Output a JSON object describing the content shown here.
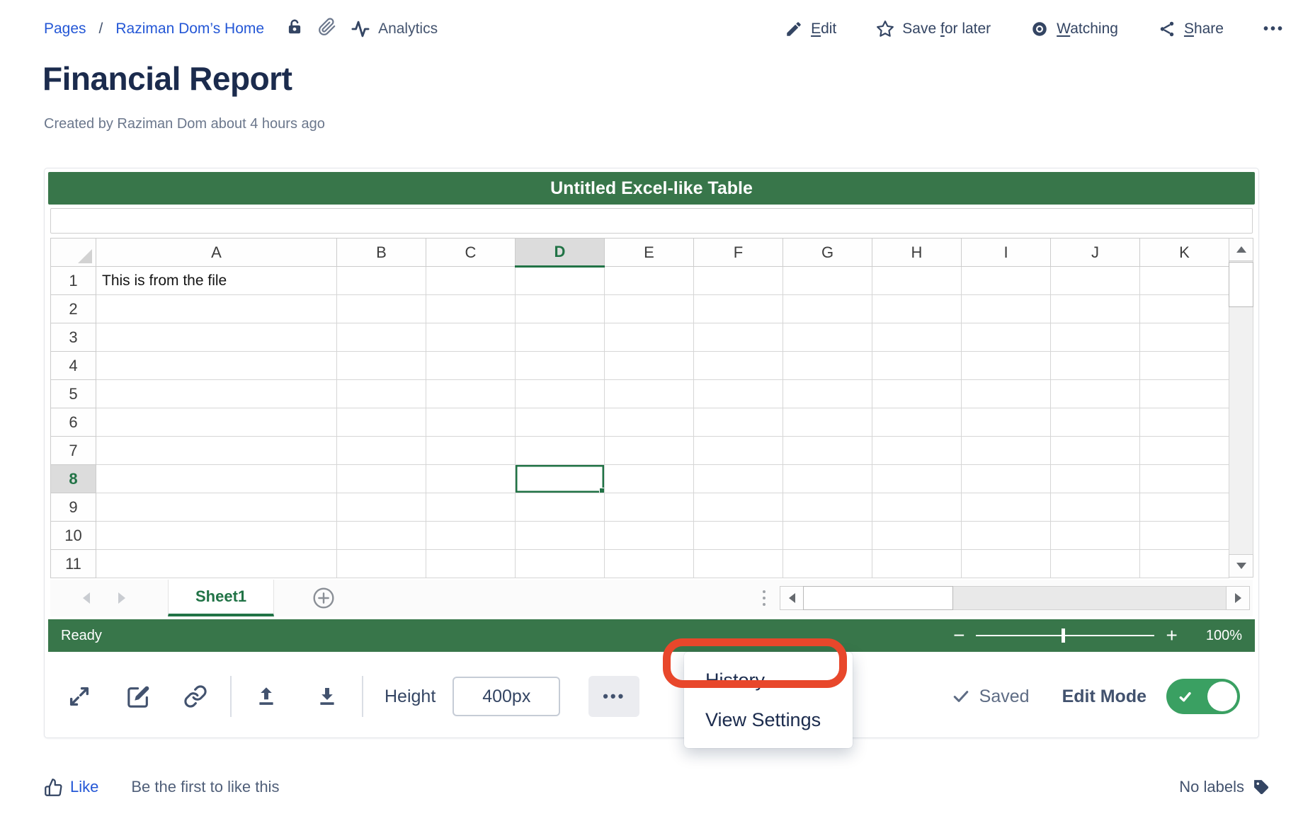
{
  "breadcrumb": {
    "items": [
      "Pages",
      "Raziman Dom’s Home"
    ],
    "separator": "/"
  },
  "topbar": {
    "analytics_label": "Analytics",
    "edit": {
      "pre": "",
      "key": "E",
      "rest": "dit"
    },
    "save_for_later": {
      "pre": "Save ",
      "key": "f",
      "rest": "or later"
    },
    "watching": {
      "pre": "",
      "key": "W",
      "rest": "atching"
    },
    "share": {
      "pre": "",
      "key": "S",
      "rest": "hare"
    },
    "more": "•••"
  },
  "page": {
    "title": "Financial Report",
    "byline": "Created by Raziman Dom about 4 hours ago"
  },
  "macro": {
    "title": "Untitled Excel-like Table",
    "formula_value": "",
    "grid": {
      "columns": [
        "A",
        "B",
        "C",
        "D",
        "E",
        "F",
        "G",
        "H",
        "I",
        "J",
        "K"
      ],
      "row_count": 11,
      "selected_column": "D",
      "selected_row": 8,
      "selected_cell": {
        "col": "D",
        "row": 8
      },
      "cells": [
        {
          "col": "A",
          "row": 1,
          "value": "This is from the file"
        }
      ]
    },
    "sheets": {
      "active_tab": "Sheet1"
    },
    "status": {
      "ready": "Ready",
      "zoom_minus": "−",
      "zoom_plus": "+",
      "zoom_percent": "100%"
    },
    "toolbar": {
      "height_label": "Height",
      "height_value": "400px",
      "more": "•••",
      "saved": "Saved",
      "edit_mode": "Edit Mode"
    },
    "menu": {
      "items": [
        "History",
        "View Settings"
      ]
    }
  },
  "footer": {
    "like": "Like",
    "hint": "Be the first to like this",
    "labels": "No labels"
  },
  "colors": {
    "header_green": "#38764A",
    "selection_green": "#217346",
    "toggle_green": "#3AA062",
    "annotation_red": "#E8472B",
    "link_blue": "#2457D6",
    "title_navy": "#1B2B4D",
    "icon_navy": "#344563"
  }
}
